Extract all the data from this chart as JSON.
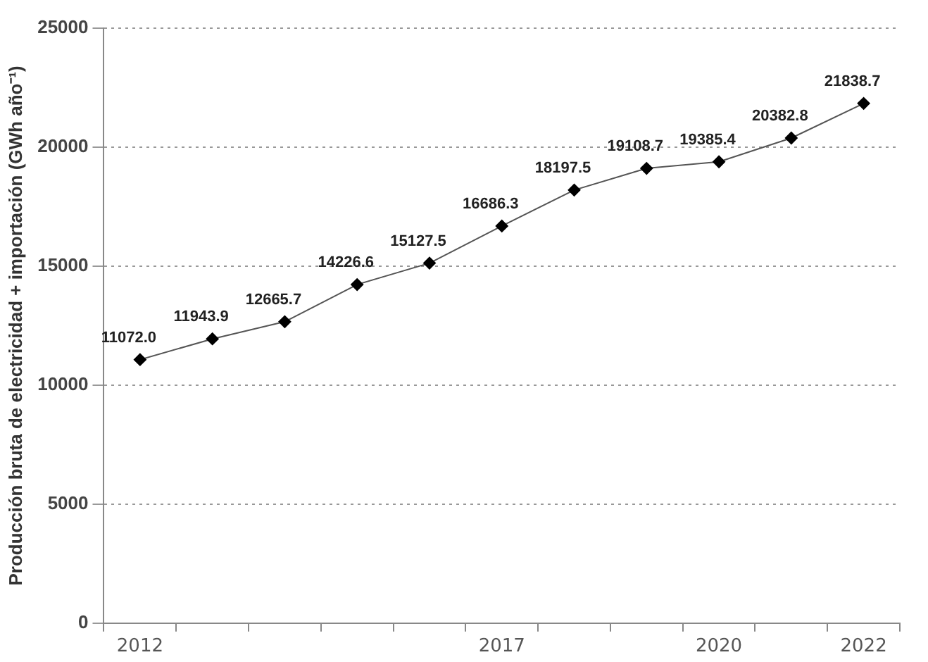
{
  "chart_data": {
    "type": "line",
    "ylabel": "Producción bruta de electricidad + importación (GWh año⁻¹)",
    "categories": [
      "2012",
      null,
      null,
      null,
      null,
      "2017",
      null,
      null,
      "2020",
      null,
      "2022"
    ],
    "series": [
      {
        "color": "#000000",
        "values": [
          11072,
          11943.9,
          12665.7,
          14226.6,
          15127.5,
          16686.3,
          18197.5,
          19108.7,
          19385.4,
          20382.8,
          21838.7
        ],
        "value_labels": [
          "11072.0",
          "11943.9",
          "12665.7",
          "14226.6",
          "15127.5",
          "16686.3",
          "18197.5",
          "19108.7",
          "19385.4",
          "20382.8",
          "21838.7"
        ]
      }
    ],
    "ylim": [
      0,
      25000
    ],
    "yticks": [
      0,
      5000,
      10000,
      15000,
      20000,
      25000
    ],
    "grid": "y",
    "legend": false,
    "marker": "diamond",
    "line_style": "solid"
  }
}
